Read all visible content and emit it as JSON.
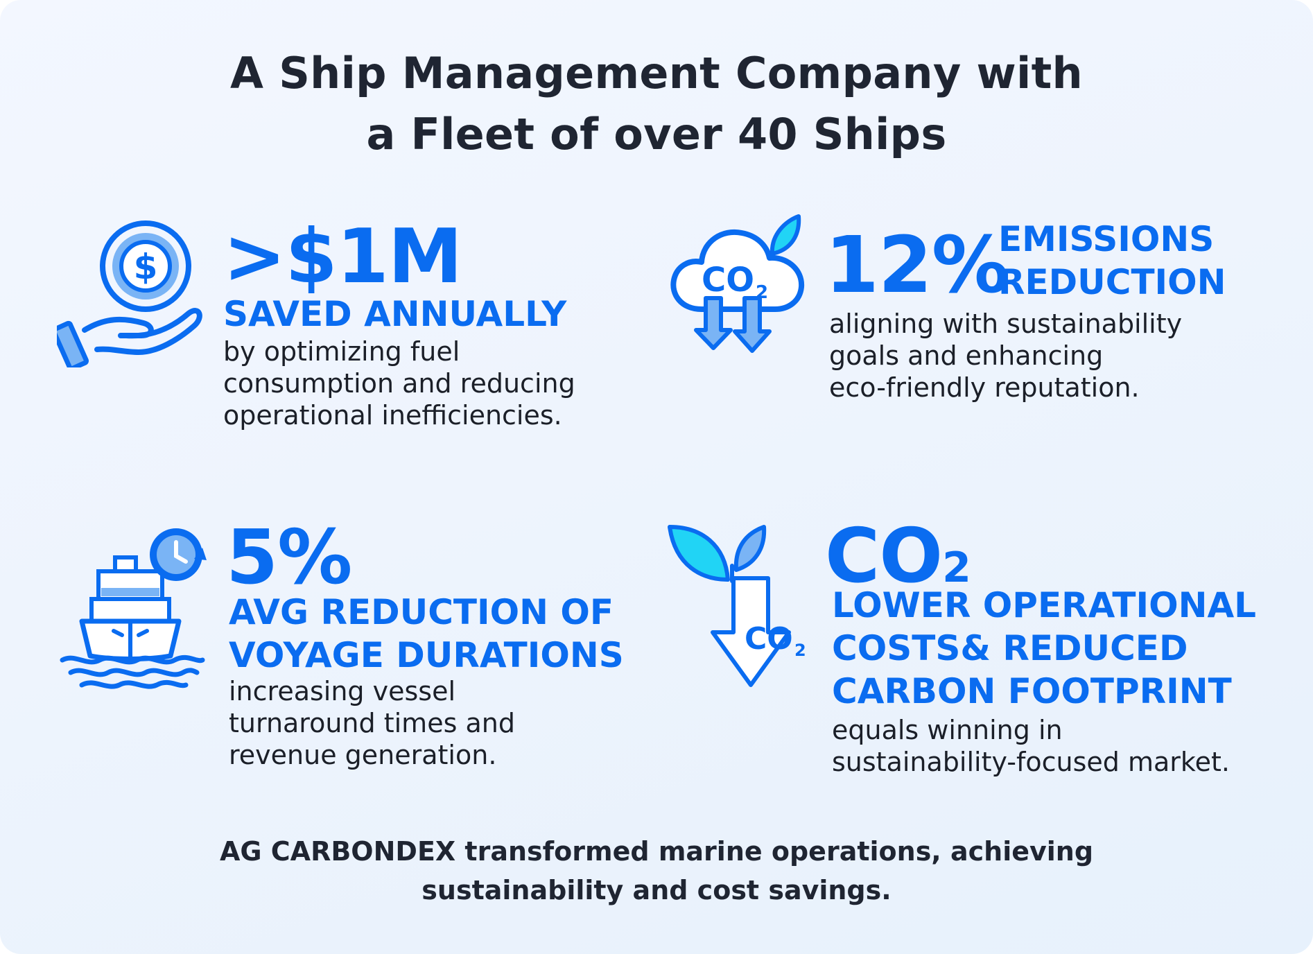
{
  "title": {
    "line1": "A Ship Management Company with",
    "line2": "a Fleet of over 40 Ships"
  },
  "stats": [
    {
      "value": ">$1M",
      "label_lines": [
        "SAVED ANNUALLY"
      ],
      "desc_lines": [
        "by optimizing fuel",
        "consumption and reducing",
        "operational inefficiencies."
      ],
      "icon": "hand-holding-coin-icon"
    },
    {
      "value": "12%",
      "label_lines": [
        "EMISSIONS",
        "REDUCTION"
      ],
      "desc_lines": [
        "aligning with sustainability",
        "goals and enhancing",
        "eco-friendly reputation."
      ],
      "icon": "co2-cloud-down-icon",
      "icon_text": "CO",
      "icon_sub": "2"
    },
    {
      "value": "5%",
      "label_lines": [
        "AVG REDUCTION OF",
        "VOYAGE DURATIONS"
      ],
      "desc_lines": [
        "increasing vessel",
        "turnaround times and",
        "revenue generation."
      ],
      "icon": "ship-clock-icon"
    },
    {
      "value": "CO",
      "value_sub": "2",
      "label_lines": [
        "LOWER OPERATIONAL",
        "COSTS& REDUCED",
        "CARBON FOOTPRINT"
      ],
      "desc_lines": [
        "equals winning in",
        "sustainability-focused market."
      ],
      "icon": "leaf-co2-arrow-icon",
      "icon_text": "CO",
      "icon_sub": "2"
    }
  ],
  "footer": {
    "line1": "AG CARBONDEX transformed marine operations, achieving",
    "line2": "sustainability and cost savings."
  },
  "colors": {
    "accent": "#0a6cf0",
    "accent_light": "#7ab4f5",
    "cyan": "#21d4f5",
    "text_dark": "#1f2532"
  }
}
